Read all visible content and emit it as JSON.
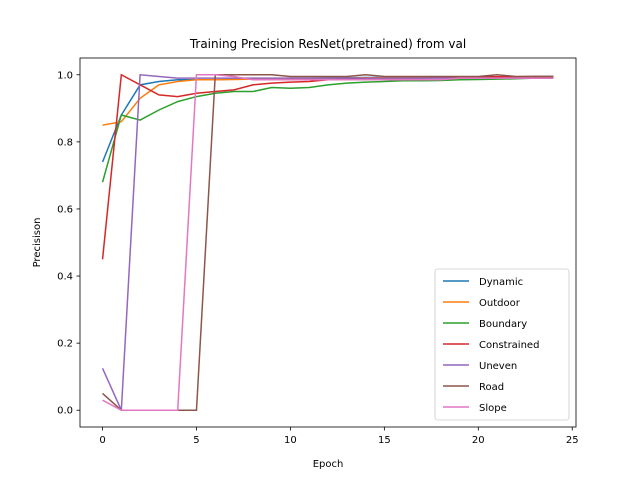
{
  "chart_data": {
    "type": "line",
    "title": "Training Precision ResNet(pretrained) from val",
    "xlabel": "Epoch",
    "ylabel": "Precisison",
    "xlim": [
      -1.2,
      25.2
    ],
    "ylim": [
      -0.05,
      1.05
    ],
    "x_ticks": [
      0,
      5,
      10,
      15,
      20,
      25
    ],
    "y_ticks": [
      0.0,
      0.2,
      0.4,
      0.6,
      0.8,
      1.0
    ],
    "x_tick_labels": [
      "0",
      "5",
      "10",
      "15",
      "20",
      "25"
    ],
    "y_tick_labels": [
      "0.0",
      "0.2",
      "0.4",
      "0.6",
      "0.8",
      "1.0"
    ],
    "grid": false,
    "legend_position": "lower-right",
    "x": [
      0,
      1,
      2,
      3,
      4,
      5,
      6,
      7,
      8,
      9,
      10,
      11,
      12,
      13,
      14,
      15,
      16,
      17,
      18,
      19,
      20,
      21,
      22,
      23,
      24
    ],
    "series": [
      {
        "name": "Dynamic",
        "color": "#1f77b4",
        "values": [
          0.74,
          0.88,
          0.97,
          0.98,
          0.985,
          0.985,
          0.985,
          0.987,
          0.988,
          0.989,
          0.99,
          0.99,
          0.991,
          0.991,
          0.992,
          0.992,
          0.992,
          0.993,
          0.993,
          0.993,
          0.994,
          0.994,
          0.994,
          0.995,
          0.995
        ]
      },
      {
        "name": "Outdoor",
        "color": "#ff7f0e",
        "values": [
          0.85,
          0.86,
          0.93,
          0.97,
          0.98,
          0.985,
          0.985,
          0.986,
          0.987,
          0.988,
          0.989,
          0.99,
          0.99,
          0.99,
          0.991,
          0.991,
          0.992,
          0.992,
          0.992,
          0.993,
          0.993,
          0.993,
          0.994,
          0.994,
          0.994
        ]
      },
      {
        "name": "Boundary",
        "color": "#2ca02c",
        "values": [
          0.68,
          0.88,
          0.865,
          0.895,
          0.92,
          0.935,
          0.945,
          0.95,
          0.95,
          0.962,
          0.96,
          0.962,
          0.97,
          0.975,
          0.978,
          0.98,
          0.982,
          0.982,
          0.983,
          0.985,
          0.986,
          0.987,
          0.988,
          0.99,
          0.99
        ]
      },
      {
        "name": "Constrained",
        "color": "#d62728",
        "values": [
          0.45,
          1.0,
          0.97,
          0.94,
          0.935,
          0.945,
          0.95,
          0.955,
          0.97,
          0.975,
          0.978,
          0.98,
          0.985,
          0.987,
          0.99,
          0.99,
          0.99,
          0.99,
          0.992,
          0.993,
          0.993,
          0.994,
          0.994,
          0.995,
          0.995
        ]
      },
      {
        "name": "Uneven",
        "color": "#9467bd",
        "values": [
          0.125,
          0.0,
          1.0,
          0.995,
          0.99,
          0.99,
          0.99,
          0.99,
          0.99,
          0.99,
          0.99,
          0.99,
          0.99,
          0.99,
          0.99,
          0.99,
          0.99,
          0.99,
          0.99,
          0.99,
          0.99,
          0.99,
          0.99,
          0.99,
          0.99
        ]
      },
      {
        "name": "Road",
        "color": "#8c564b",
        "values": [
          0.05,
          0.0,
          0.0,
          0.0,
          0.0,
          0.0,
          1.0,
          1.0,
          1.0,
          1.0,
          0.995,
          0.995,
          0.995,
          0.995,
          1.0,
          0.995,
          0.995,
          0.995,
          0.995,
          0.995,
          0.995,
          1.0,
          0.995,
          0.995,
          0.995
        ]
      },
      {
        "name": "Slope",
        "color": "#e377c2",
        "values": [
          0.03,
          0.0,
          0.0,
          0.0,
          0.0,
          1.0,
          1.0,
          0.995,
          0.985,
          0.985,
          0.985,
          0.985,
          0.985,
          0.985,
          0.985,
          0.985,
          0.985,
          0.985,
          0.985,
          0.99,
          0.99,
          0.99,
          0.99,
          0.99,
          0.99
        ]
      }
    ]
  }
}
